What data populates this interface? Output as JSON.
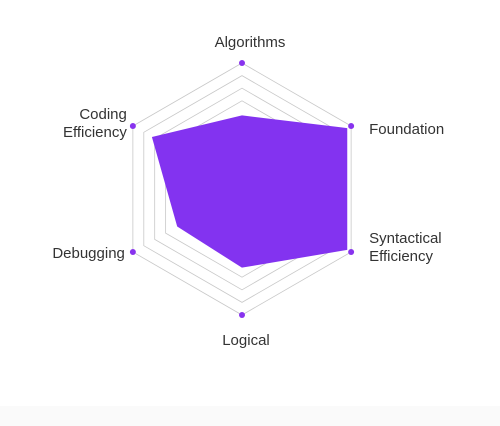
{
  "chart_data": {
    "type": "radar",
    "axes": [
      {
        "label": [
          "Algorithms"
        ],
        "value": 0.58
      },
      {
        "label": [
          "Foundation"
        ],
        "value": 0.96
      },
      {
        "label": [
          "Syntactical",
          "Efficiency"
        ],
        "value": 0.96
      },
      {
        "label": [
          "Logical"
        ],
        "value": 0.62
      },
      {
        "label": [
          "Debugging"
        ],
        "value": 0.59
      },
      {
        "label": [
          "Coding",
          "Efficiency"
        ],
        "value": 0.82
      }
    ],
    "rings": [
      1.0,
      0.9,
      0.8,
      0.7
    ],
    "series": [
      {
        "values": [
          0.58,
          0.96,
          0.96,
          0.62,
          0.59,
          0.82
        ]
      }
    ]
  },
  "colors": {
    "fill": "#8333f0",
    "marker": "#8833ee",
    "grid": "#c8c8c8",
    "text": "#333333"
  }
}
